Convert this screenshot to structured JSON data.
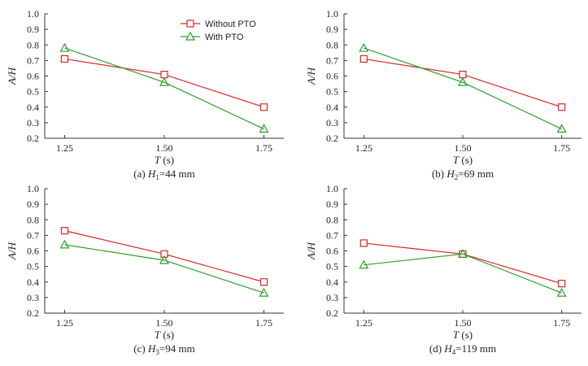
{
  "colors": {
    "without_pto": "#d62728",
    "with_pto": "#2ca02c",
    "axis": "#333333"
  },
  "legend": {
    "placement": "top-right of panel (a)",
    "entries": [
      {
        "name": "Without PTO",
        "marker": "square"
      },
      {
        "name": "With PTO",
        "marker": "triangle"
      }
    ]
  },
  "chart_data": [
    {
      "type": "line",
      "panel": "a",
      "caption": "(a) H1=44 mm",
      "caption_parts": {
        "prefix": "(a)",
        "var": "H",
        "sub": "1",
        "rest": "=44 mm"
      },
      "xlabel": "T (s)",
      "xlabel_parts": {
        "var": "T",
        "unit": " (s)"
      },
      "ylabel": "A/H",
      "x": [
        1.25,
        1.5,
        1.75
      ],
      "xticks": [
        "1.25",
        "1.50",
        "1.75"
      ],
      "xlim": [
        1.2,
        1.8
      ],
      "ylim": [
        0.2,
        1.0
      ],
      "yticks": [
        "0.2",
        "0.3",
        "0.4",
        "0.5",
        "0.6",
        "0.7",
        "0.8",
        "0.9",
        "1.0"
      ],
      "series": [
        {
          "name": "Without PTO",
          "values": [
            0.71,
            0.61,
            0.4
          ]
        },
        {
          "name": "With PTO",
          "values": [
            0.78,
            0.56,
            0.26
          ]
        }
      ]
    },
    {
      "type": "line",
      "panel": "b",
      "caption": "(b) H2=69 mm",
      "caption_parts": {
        "prefix": "(b)",
        "var": "H",
        "sub": "2",
        "rest": "=69 mm"
      },
      "xlabel": "T (s)",
      "xlabel_parts": {
        "var": "T",
        "unit": " (s)"
      },
      "ylabel": "A/H",
      "x": [
        1.25,
        1.5,
        1.75
      ],
      "xticks": [
        "1.25",
        "1.50",
        "1.75"
      ],
      "xlim": [
        1.2,
        1.8
      ],
      "ylim": [
        0.2,
        1.0
      ],
      "yticks": [
        "0.2",
        "0.3",
        "0.4",
        "0.5",
        "0.6",
        "0.7",
        "0.8",
        "0.9",
        "1.0"
      ],
      "series": [
        {
          "name": "Without PTO",
          "values": [
            0.71,
            0.61,
            0.4
          ]
        },
        {
          "name": "With PTO",
          "values": [
            0.78,
            0.56,
            0.26
          ]
        }
      ]
    },
    {
      "type": "line",
      "panel": "c",
      "caption": "(c) H3=94 mm",
      "caption_parts": {
        "prefix": "(c)",
        "var": "H",
        "sub": "3",
        "rest": "=94 mm"
      },
      "xlabel": "T (s)",
      "xlabel_parts": {
        "var": "T",
        "unit": " (s)"
      },
      "ylabel": "A/H",
      "x": [
        1.25,
        1.5,
        1.75
      ],
      "xticks": [
        "1.25",
        "1.50",
        "1.75"
      ],
      "xlim": [
        1.2,
        1.8
      ],
      "ylim": [
        0.2,
        1.0
      ],
      "yticks": [
        "0.2",
        "0.3",
        "0.4",
        "0.5",
        "0.6",
        "0.7",
        "0.8",
        "0.9",
        "1.0"
      ],
      "series": [
        {
          "name": "Without PTO",
          "values": [
            0.73,
            0.58,
            0.4
          ]
        },
        {
          "name": "With PTO",
          "values": [
            0.64,
            0.54,
            0.33
          ]
        }
      ]
    },
    {
      "type": "line",
      "panel": "d",
      "caption": "(d) H4=119 mm",
      "caption_parts": {
        "prefix": "(d)",
        "var": "H",
        "sub": "4",
        "rest": "=119 mm"
      },
      "xlabel": "T (s)",
      "xlabel_parts": {
        "var": "T",
        "unit": " (s)"
      },
      "ylabel": "A/H",
      "x": [
        1.25,
        1.5,
        1.75
      ],
      "xticks": [
        "1.25",
        "1.50",
        "1.75"
      ],
      "xlim": [
        1.2,
        1.8
      ],
      "ylim": [
        0.2,
        1.0
      ],
      "yticks": [
        "0.2",
        "0.3",
        "0.4",
        "0.5",
        "0.6",
        "0.7",
        "0.8",
        "0.9",
        "1.0"
      ],
      "series": [
        {
          "name": "Without PTO",
          "values": [
            0.65,
            0.58,
            0.39
          ]
        },
        {
          "name": "With PTO",
          "values": [
            0.51,
            0.58,
            0.33
          ]
        }
      ]
    }
  ]
}
